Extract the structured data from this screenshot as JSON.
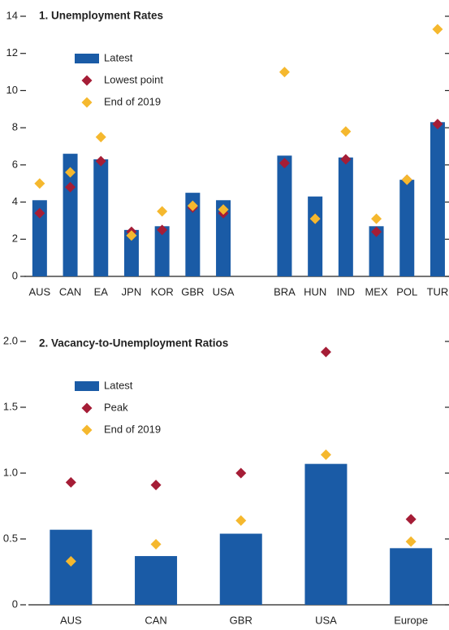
{
  "chart_data": [
    {
      "type": "bar",
      "title": "1. Unemployment Rates",
      "categories": [
        "AUS",
        "CAN",
        "EA",
        "JPN",
        "KOR",
        "GBR",
        "USA",
        null,
        "BRA",
        "HUN",
        "IND",
        "MEX",
        "POL",
        "TUR"
      ],
      "series": [
        {
          "name": "Latest",
          "type": "bar",
          "color": "#1a5ba6",
          "values": [
            4.1,
            6.6,
            6.3,
            2.5,
            2.7,
            4.5,
            4.1,
            null,
            6.5,
            4.3,
            6.4,
            2.7,
            5.2,
            8.3
          ]
        },
        {
          "name": "Lowest point",
          "type": "diamond",
          "color": "#a51d36",
          "values": [
            3.4,
            4.8,
            6.2,
            2.4,
            2.5,
            3.7,
            3.4,
            null,
            6.1,
            3.1,
            6.3,
            2.4,
            5.2,
            8.2
          ]
        },
        {
          "name": "End of 2019",
          "type": "diamond",
          "color": "#f5b82e",
          "values": [
            5.0,
            5.6,
            7.5,
            2.2,
            3.5,
            3.8,
            3.6,
            null,
            11.0,
            3.1,
            7.8,
            3.1,
            5.2,
            13.3
          ]
        }
      ],
      "ylim": [
        0,
        14
      ],
      "yticks": [
        0,
        2,
        4,
        6,
        8,
        10,
        12,
        14
      ],
      "legend": "upper left"
    },
    {
      "type": "bar",
      "title": "2. Vacancy-to-Unemployment Ratios",
      "categories": [
        "AUS",
        "CAN",
        "GBR",
        "USA",
        "Europe"
      ],
      "series": [
        {
          "name": "Latest",
          "type": "bar",
          "color": "#1a5ba6",
          "values": [
            0.57,
            0.37,
            0.54,
            1.07,
            0.43
          ]
        },
        {
          "name": "Peak",
          "type": "diamond",
          "color": "#a51d36",
          "values": [
            0.93,
            0.91,
            1.0,
            1.92,
            0.65
          ]
        },
        {
          "name": "End of 2019",
          "type": "diamond",
          "color": "#f5b82e",
          "values": [
            0.33,
            0.46,
            0.64,
            1.14,
            0.48
          ]
        }
      ],
      "ylim": [
        0,
        2.0
      ],
      "yticks": [
        0,
        0.5,
        {
          "value": 1.0,
          "label": "1.0"
        },
        1.5,
        {
          "value": 2.0,
          "label": "2.0"
        }
      ],
      "legend": "upper left"
    }
  ]
}
